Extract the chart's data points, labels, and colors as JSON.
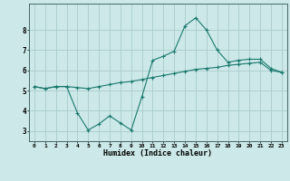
{
  "title": "",
  "xlabel": "Humidex (Indice chaleur)",
  "bg_color": "#cce8e8",
  "line_color": "#1a7a6e",
  "grid_color": "#aacccc",
  "xlim": [
    -0.5,
    23.5
  ],
  "ylim": [
    2.5,
    9.3
  ],
  "yticks": [
    3,
    4,
    5,
    6,
    7,
    8
  ],
  "xticks": [
    0,
    1,
    2,
    3,
    4,
    5,
    6,
    7,
    8,
    9,
    10,
    11,
    12,
    13,
    14,
    15,
    16,
    17,
    18,
    19,
    20,
    21,
    22,
    23
  ],
  "line1_x": [
    0,
    1,
    2,
    3,
    4,
    5,
    6,
    7,
    8,
    9,
    10,
    11,
    12,
    13,
    14,
    15,
    16,
    17,
    18,
    19,
    20,
    21,
    22,
    23
  ],
  "line1_y": [
    5.2,
    5.1,
    5.2,
    5.2,
    3.9,
    3.05,
    3.35,
    3.75,
    3.4,
    3.05,
    4.7,
    6.5,
    6.7,
    6.95,
    8.2,
    8.6,
    8.0,
    7.0,
    6.4,
    6.5,
    6.55,
    6.55,
    6.1,
    5.9
  ],
  "line2_x": [
    0,
    1,
    2,
    3,
    4,
    5,
    6,
    7,
    8,
    9,
    10,
    11,
    12,
    13,
    14,
    15,
    16,
    17,
    18,
    19,
    20,
    21,
    22,
    23
  ],
  "line2_y": [
    5.2,
    5.1,
    5.2,
    5.2,
    5.15,
    5.1,
    5.2,
    5.3,
    5.4,
    5.45,
    5.55,
    5.65,
    5.75,
    5.85,
    5.95,
    6.05,
    6.1,
    6.15,
    6.25,
    6.3,
    6.35,
    6.4,
    6.0,
    5.9
  ]
}
